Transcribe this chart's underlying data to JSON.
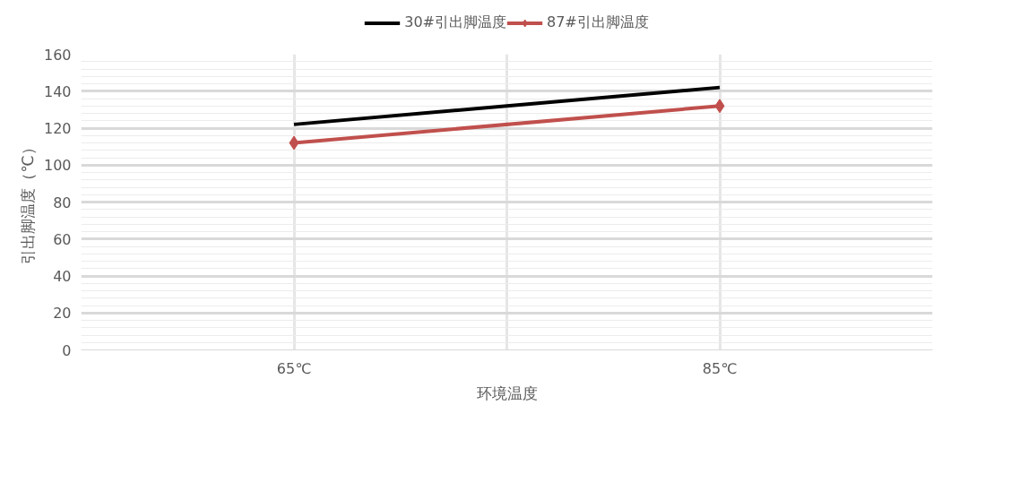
{
  "chart_data": {
    "type": "line",
    "xlabel": "环境温度",
    "ylabel": "引出脚温度（℃）",
    "categories": [
      "65℃",
      "85℃"
    ],
    "series": [
      {
        "name": "30#引出脚温度",
        "color": "#000000",
        "values": [
          122,
          142
        ],
        "marker": "none"
      },
      {
        "name": "87#引出脚温度",
        "color": "#c0504d",
        "values": [
          112,
          132
        ],
        "marker": "diamond"
      }
    ],
    "ylim": [
      0,
      160
    ],
    "yticks": [
      0,
      20,
      40,
      60,
      80,
      100,
      120,
      140,
      160
    ],
    "grid": true,
    "legend": "top",
    "line_style": "solid"
  }
}
